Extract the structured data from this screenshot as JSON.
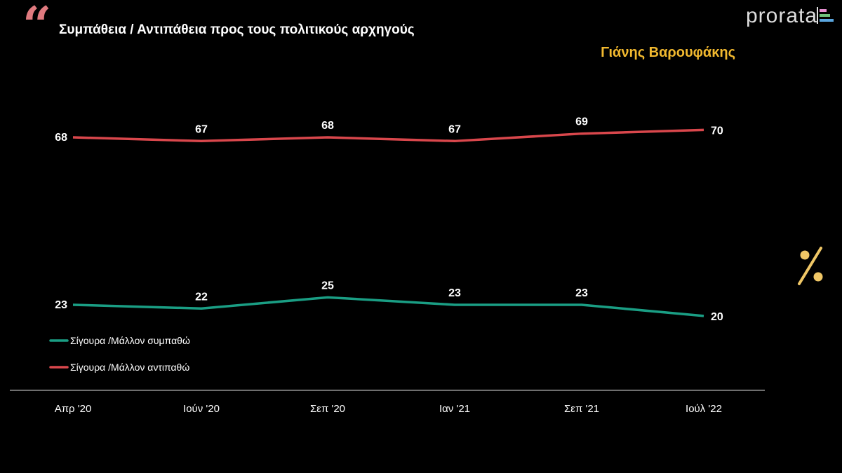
{
  "header": {
    "title": "Συμπάθεια / Αντιπάθεια προς τους πολιτικούς αρχηγούς",
    "person": "Γιάνης Βαρουφάκης",
    "logo": "prorata",
    "quote_icon": "quote-icon",
    "percent_icon": "percent-icon"
  },
  "colors": {
    "sympathy": "#1a9e84",
    "antipathy": "#d9474c",
    "accent": "#f2b92f",
    "quote": "#e07a7f"
  },
  "chart_data": {
    "type": "line",
    "title": "Συμπάθεια / Αντιπάθεια προς τους πολιτικούς αρχηγούς",
    "categories": [
      "Απρ '20",
      "Ιούν '20",
      "Σεπ '20",
      "Ιαν '21",
      "Σεπ '21",
      "Ιούλ '22"
    ],
    "series": [
      {
        "name": "Σίγουρα /Μάλλον συμπαθώ",
        "color": "#1a9e84",
        "values": [
          23,
          22,
          25,
          23,
          23,
          20
        ]
      },
      {
        "name": "Σίγουρα /Μάλλον αντιπαθώ",
        "color": "#d9474c",
        "values": [
          68,
          67,
          68,
          67,
          69,
          70
        ]
      }
    ],
    "xlabel": "",
    "ylabel": "%",
    "legend": "bottom-left",
    "grid": false
  }
}
